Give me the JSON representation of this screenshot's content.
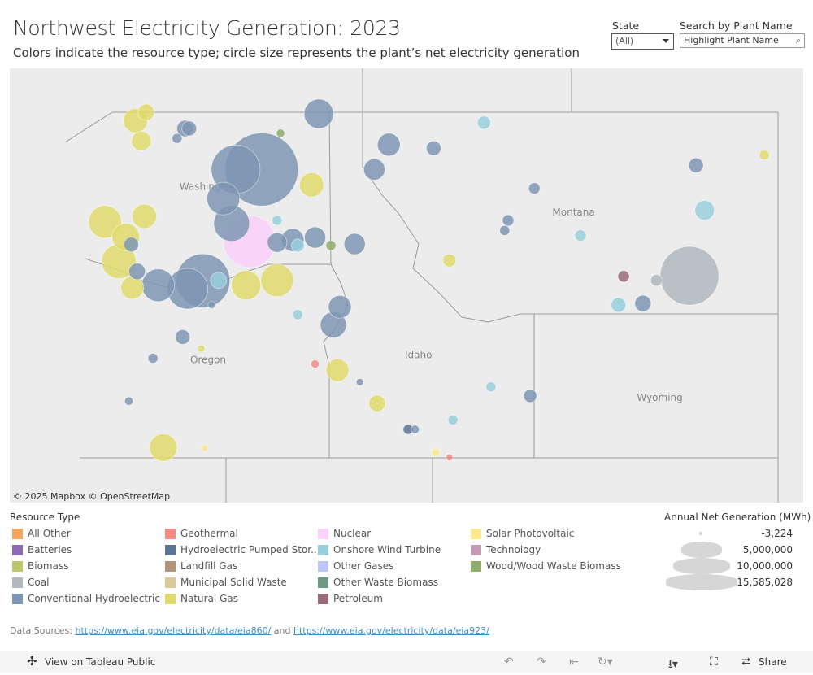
{
  "header": {
    "title": "Northwest Electricity Generation: 2023",
    "subtitle": "Colors indicate the resource type; circle size represents the plant’s net electricity generation"
  },
  "filters": {
    "state_label": "State",
    "state_value": "(All)",
    "search_label": "Search by Plant Name",
    "search_placeholder": "Highlight Plant Name",
    "search_icon": "search-icon"
  },
  "map": {
    "attribution": "© 2025 Mapbox  © OpenStreetMap",
    "state_labels": [
      {
        "name": "Washington",
        "lon": -120.6,
        "lat": 47.5
      },
      {
        "name": "Oregon",
        "lon": -120.6,
        "lat": 44.0
      },
      {
        "name": "Idaho",
        "lon": -114.5,
        "lat": 44.1
      },
      {
        "name": "Montana",
        "lon": -110.0,
        "lat": 47.0
      },
      {
        "name": "Wyoming",
        "lon": -107.5,
        "lat": 43.2
      }
    ],
    "plants": [
      {
        "type": "Conventional Hydroelectric",
        "lon": -119.05,
        "lat": 47.9,
        "mwh": 15500000
      },
      {
        "type": "Conventional Hydroelectric",
        "lon": -119.8,
        "lat": 47.9,
        "mwh": 6900000
      },
      {
        "type": "Conventional Hydroelectric",
        "lon": -120.16,
        "lat": 47.33,
        "mwh": 3100000
      },
      {
        "type": "Conventional Hydroelectric",
        "lon": -117.39,
        "lat": 48.97,
        "mwh": 2500000
      },
      {
        "type": "Conventional Hydroelectric",
        "lon": -115.36,
        "lat": 48.38,
        "mwh": 1500000
      },
      {
        "type": "Conventional Hydroelectric",
        "lon": -115.78,
        "lat": 47.9,
        "mwh": 1300000
      },
      {
        "type": "Conventional Hydroelectric",
        "lon": -114.06,
        "lat": 48.31,
        "mwh": 620000
      },
      {
        "type": "Conventional Hydroelectric",
        "lon": -106.45,
        "lat": 47.98,
        "mwh": 620000
      },
      {
        "type": "Conventional Hydroelectric",
        "lon": -120.75,
        "lat": 45.69,
        "mwh": 8400000
      },
      {
        "type": "Conventional Hydroelectric",
        "lon": -121.2,
        "lat": 45.53,
        "mwh": 4800000
      },
      {
        "type": "Conventional Hydroelectric",
        "lon": -122.05,
        "lat": 45.6,
        "mwh": 3100000
      },
      {
        "type": "Conventional Hydroelectric",
        "lon": -119.92,
        "lat": 46.84,
        "mwh": 3700000
      },
      {
        "type": "Conventional Hydroelectric",
        "lon": -118.15,
        "lat": 46.51,
        "mwh": 1500000
      },
      {
        "type": "Conventional Hydroelectric",
        "lon": -117.5,
        "lat": 46.56,
        "mwh": 1300000
      },
      {
        "type": "Conventional Hydroelectric",
        "lon": -118.6,
        "lat": 46.46,
        "mwh": 1100000
      },
      {
        "type": "Conventional Hydroelectric",
        "lon": -116.35,
        "lat": 46.43,
        "mwh": 1300000
      },
      {
        "type": "Conventional Hydroelectric",
        "lon": -116.97,
        "lat": 44.79,
        "mwh": 1950000
      },
      {
        "type": "Conventional Hydroelectric",
        "lon": -116.78,
        "lat": 45.16,
        "mwh": 1500000
      },
      {
        "type": "Conventional Hydroelectric",
        "lon": -121.27,
        "lat": 48.69,
        "mwh": 770000
      },
      {
        "type": "Conventional Hydroelectric",
        "lon": -121.15,
        "lat": 48.69,
        "mwh": 620000
      },
      {
        "type": "Conventional Hydroelectric",
        "lon": -121.34,
        "lat": 44.54,
        "mwh": 620000
      },
      {
        "type": "Conventional Hydroelectric",
        "lon": -107.99,
        "lat": 45.23,
        "mwh": 770000
      },
      {
        "type": "Conventional Hydroelectric",
        "lon": -111.26,
        "lat": 43.31,
        "mwh": 490000
      },
      {
        "type": "Conventional Hydroelectric",
        "lon": -111.9,
        "lat": 46.9,
        "mwh": 370000
      },
      {
        "type": "Conventional Hydroelectric",
        "lon": -112.0,
        "lat": 46.7,
        "mwh": 280000
      },
      {
        "type": "Conventional Hydroelectric",
        "lon": -111.14,
        "lat": 47.53,
        "mwh": 370000
      },
      {
        "type": "Conventional Hydroelectric",
        "lon": -122.66,
        "lat": 45.88,
        "mwh": 770000
      },
      {
        "type": "Conventional Hydroelectric",
        "lon": -122.83,
        "lat": 46.42,
        "mwh": 620000
      },
      {
        "type": "Conventional Hydroelectric",
        "lon": -121.5,
        "lat": 48.5,
        "mwh": 280000
      },
      {
        "type": "Conventional Hydroelectric",
        "lon": -122.2,
        "lat": 44.1,
        "mwh": 280000
      },
      {
        "type": "Conventional Hydroelectric",
        "lon": -122.9,
        "lat": 43.2,
        "mwh": 200000
      },
      {
        "type": "Conventional Hydroelectric",
        "lon": -114.6,
        "lat": 42.6,
        "mwh": 200000
      },
      {
        "type": "Conventional Hydroelectric",
        "lon": -116.2,
        "lat": 43.6,
        "mwh": 150000
      },
      {
        "type": "Conventional Hydroelectric",
        "lon": -120.5,
        "lat": 45.2,
        "mwh": 150000
      },
      {
        "type": "Coal",
        "lon": -106.64,
        "lat": 45.79,
        "mwh": 10000000
      },
      {
        "type": "Coal",
        "lon": -107.6,
        "lat": 45.7,
        "mwh": 380000
      },
      {
        "type": "Nuclear",
        "lon": -119.4,
        "lat": 46.48,
        "mwh": 7900000
      },
      {
        "type": "Natural Gas",
        "lon": -123.59,
        "lat": 46.87,
        "mwh": 3100000
      },
      {
        "type": "Natural Gas",
        "lon": -123.19,
        "lat": 46.08,
        "mwh": 3400000
      },
      {
        "type": "Natural Gas",
        "lon": -122.8,
        "lat": 45.55,
        "mwh": 1500000
      },
      {
        "type": "Natural Gas",
        "lon": -122.99,
        "lat": 46.57,
        "mwh": 2200000
      },
      {
        "type": "Natural Gas",
        "lon": -122.45,
        "lat": 46.98,
        "mwh": 1700000
      },
      {
        "type": "Natural Gas",
        "lon": -122.71,
        "lat": 48.84,
        "mwh": 1700000
      },
      {
        "type": "Natural Gas",
        "lon": -122.54,
        "lat": 48.45,
        "mwh": 1100000
      },
      {
        "type": "Natural Gas",
        "lon": -122.4,
        "lat": 49.0,
        "mwh": 770000
      },
      {
        "type": "Natural Gas",
        "lon": -118.6,
        "lat": 45.7,
        "mwh": 3100000
      },
      {
        "type": "Natural Gas",
        "lon": -119.5,
        "lat": 45.6,
        "mwh": 2500000
      },
      {
        "type": "Natural Gas",
        "lon": -117.6,
        "lat": 47.6,
        "mwh": 1700000
      },
      {
        "type": "Natural Gas",
        "lon": -116.85,
        "lat": 43.85,
        "mwh": 1500000
      },
      {
        "type": "Natural Gas",
        "lon": -115.7,
        "lat": 43.15,
        "mwh": 770000
      },
      {
        "type": "Natural Gas",
        "lon": -121.9,
        "lat": 42.21,
        "mwh": 2200000
      },
      {
        "type": "Natural Gas",
        "lon": -113.6,
        "lat": 46.1,
        "mwh": 490000
      },
      {
        "type": "Natural Gas",
        "lon": -104.47,
        "lat": 48.18,
        "mwh": 280000
      },
      {
        "type": "Natural Gas",
        "lon": -120.8,
        "lat": 44.3,
        "mwh": 150000
      },
      {
        "type": "Onshore Wind Turbine",
        "lon": -106.2,
        "lat": 47.1,
        "mwh": 1100000
      },
      {
        "type": "Onshore Wind Turbine",
        "lon": -112.6,
        "lat": 48.8,
        "mwh": 490000
      },
      {
        "type": "Onshore Wind Turbine",
        "lon": -109.8,
        "lat": 46.6,
        "mwh": 370000
      },
      {
        "type": "Onshore Wind Turbine",
        "lon": -118.0,
        "lat": 45.0,
        "mwh": 280000
      },
      {
        "type": "Onshore Wind Turbine",
        "lon": -118.0,
        "lat": 46.4,
        "mwh": 490000
      },
      {
        "type": "Onshore Wind Turbine",
        "lon": -112.4,
        "lat": 43.5,
        "mwh": 280000
      },
      {
        "type": "Onshore Wind Turbine",
        "lon": -113.5,
        "lat": 42.8,
        "mwh": 280000
      },
      {
        "type": "Onshore Wind Turbine",
        "lon": -108.7,
        "lat": 45.2,
        "mwh": 620000
      },
      {
        "type": "Onshore Wind Turbine",
        "lon": -118.6,
        "lat": 46.9,
        "mwh": 280000
      },
      {
        "type": "Onshore Wind Turbine",
        "lon": -120.3,
        "lat": 45.7,
        "mwh": 770000
      },
      {
        "type": "Petroleum",
        "lon": -108.55,
        "lat": 45.78,
        "mwh": 380000
      },
      {
        "type": "Geothermal",
        "lon": -117.5,
        "lat": 43.98,
        "mwh": 190000
      },
      {
        "type": "Geothermal",
        "lon": -113.6,
        "lat": 42.0,
        "mwh": 120000
      },
      {
        "type": "Wood/Wood Waste Biomass",
        "lon": -117.04,
        "lat": 46.4,
        "mwh": 280000
      },
      {
        "type": "Wood/Wood Waste Biomass",
        "lon": -118.5,
        "lat": 48.6,
        "mwh": 190000
      },
      {
        "type": "Hydroelectric Pumped Storage",
        "lon": -114.8,
        "lat": 42.6,
        "mwh": 280000
      },
      {
        "type": "Solar Photovoltaic",
        "lon": -114.0,
        "lat": 42.1,
        "mwh": 190000
      },
      {
        "type": "Solar Photovoltaic",
        "lon": -120.7,
        "lat": 42.2,
        "mwh": 120000
      }
    ]
  },
  "legend": {
    "title": "Resource Type",
    "items": [
      {
        "label": "All Other",
        "color": "#f3a55c"
      },
      {
        "label": "Batteries",
        "color": "#8d6bb8"
      },
      {
        "label": "Biomass",
        "color": "#bdc86b"
      },
      {
        "label": "Coal",
        "color": "#b0b8c0"
      },
      {
        "label": "Conventional Hydroelectric",
        "color": "#7f96b4"
      },
      {
        "label": "Geothermal",
        "color": "#f28b82"
      },
      {
        "label": "Hydroelectric Pumped Stor...",
        "color": "#5a7596"
      },
      {
        "label": "Landfill Gas",
        "color": "#b3957d"
      },
      {
        "label": "Municipal Solid Waste",
        "color": "#dcc99a"
      },
      {
        "label": "Natural Gas",
        "color": "#e0da6b"
      },
      {
        "label": "Nuclear",
        "color": "#fbd0fb"
      },
      {
        "label": "Onshore Wind Turbine",
        "color": "#99cfdc"
      },
      {
        "label": "Other Gases",
        "color": "#bcc5fa"
      },
      {
        "label": "Other Waste Biomass",
        "color": "#6c9a85"
      },
      {
        "label": "Petroleum",
        "color": "#9a6b7c"
      },
      {
        "label": "Solar Photovoltaic",
        "color": "#fbe98c"
      },
      {
        "label": "Technology",
        "color": "#c49bb7"
      },
      {
        "label": "Wood/Wood Waste Biomass",
        "color": "#8fac6b"
      }
    ]
  },
  "size_legend": {
    "title": "Annual Net Generation (MWh)",
    "values": [
      "-3,224",
      "5,000,000",
      "10,000,000",
      "15,585,028"
    ]
  },
  "sources": {
    "prefix": "Data Sources: ",
    "link1": "https://www.eia.gov/electricity/data/eia860/",
    "middle": " and ",
    "link2": "https://www.eia.gov/electricity/data/eia923/"
  },
  "toolbar": {
    "view_label": "View on Tableau Public",
    "share_label": "Share"
  }
}
